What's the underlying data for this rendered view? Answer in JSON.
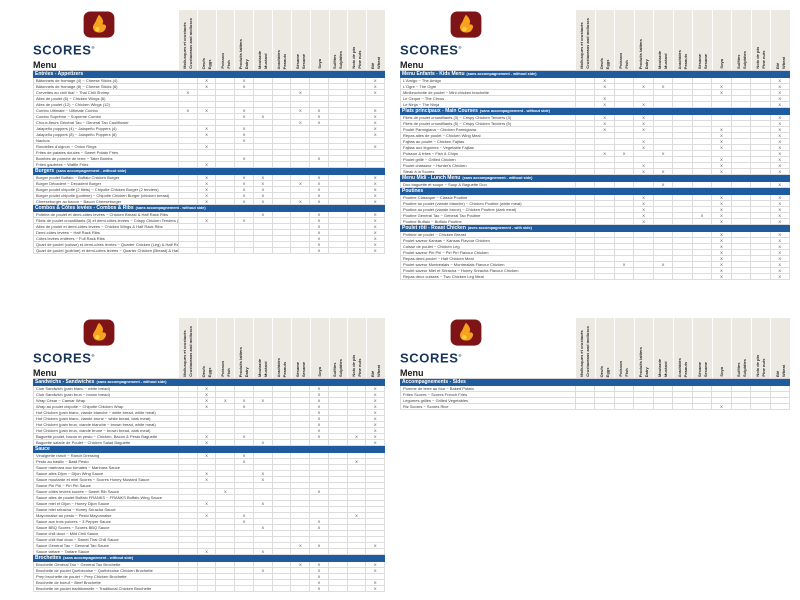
{
  "brand": {
    "name": "SCORES",
    "registered": "®",
    "menu_label": "Menu"
  },
  "mark": "X",
  "colors": {
    "section_bar_blue": "#1f5c9f",
    "logo_red": "#7e1416",
    "logo_navy": "#17365c",
    "flame_orange": "#f6a21f",
    "flame_yellow": "#fcd23b",
    "column_header_gray": "#ece9e3"
  },
  "allergens": [
    {
      "fr": "Mollusques et crustacés",
      "en": "Crustaceans and molluscs"
    },
    {
      "fr": "Oeufs",
      "en": "Eggs"
    },
    {
      "fr": "Poisson",
      "en": "Fish"
    },
    {
      "fr": "Produits laitiers",
      "en": "Dairy"
    },
    {
      "fr": "Moutarde",
      "en": "Mustard"
    },
    {
      "fr": "Arachides",
      "en": "Peanuts"
    },
    {
      "fr": "Sésame",
      "en": "Sesame"
    },
    {
      "fr": "Soya",
      "en": ""
    },
    {
      "fr": "Sulfites",
      "en": "Sulphites"
    },
    {
      "fr": "Noix de pin",
      "en": "Pine nuts"
    },
    {
      "fr": "Blé",
      "en": "Wheat"
    }
  ],
  "tables": [
    {
      "id": "q1",
      "sections": [
        {
          "title": "Entrées - Appetizers",
          "note": "",
          "rows": [
            {
              "name": "Bâtonnets de fromage (4) ~ Cheese Sticks (4)",
              "marks": [
                1,
                3,
                10
              ]
            },
            {
              "name": "Bâtonnets de fromage (8) ~ Cheese Sticks (8)",
              "marks": [
                1,
                3,
                10
              ]
            },
            {
              "name": "Crevettes au chili thaï ~ Thai Chili Shrimp",
              "marks": [
                0,
                6,
                10
              ]
            },
            {
              "name": "Ailes de poulet (6) ~ Chicken Wings (6)",
              "marks": []
            },
            {
              "name": "Ailes de poulet (12) ~ Chicken Wings (12)",
              "marks": []
            },
            {
              "name": "Combo Ultimate ~ Ultimate Combo",
              "marks": [
                0,
                1,
                3,
                6,
                7,
                10
              ]
            },
            {
              "name": "Combo Suprême ~ Supreme Combo",
              "marks": [
                3,
                4,
                7,
                10
              ]
            },
            {
              "name": "Choux-fleurs Général Tao ~ General Tao Cauliflower",
              "marks": [
                6,
                7,
                10
              ]
            },
            {
              "name": "Jalapeño poppers (4) ~ Jalapeño Poppers (4)",
              "marks": [
                1,
                3,
                10
              ]
            },
            {
              "name": "Jalapeño poppers (8) ~ Jalapeño Poppers (8)",
              "marks": [
                1,
                3,
                10
              ]
            },
            {
              "name": "Nachos",
              "marks": [
                3
              ]
            },
            {
              "name": "Rondelles d'oignon ~ Onion Rings",
              "marks": [
                1,
                10
              ]
            },
            {
              "name": "Frites de patates douces ~ Sweet Potato Fries",
              "marks": []
            },
            {
              "name": "Bombes de pomme de terre ~ Tater Bombs",
              "marks": [
                3,
                7
              ]
            },
            {
              "name": "Frites gaufrées ~ Waffle Fries",
              "marks": [
                1
              ]
            }
          ]
        },
        {
          "title": "Burgers",
          "note": "(sans accompagnement - without side)",
          "rows": [
            {
              "name": "Burger poulet Buffalo ~ Buffalo Chicken Burger",
              "marks": [
                1,
                3,
                4,
                7,
                10
              ]
            },
            {
              "name": "Burger Décadent ~ Decadent Burger",
              "marks": [
                1,
                3,
                4,
                6,
                7,
                10
              ]
            },
            {
              "name": "Burger poulet chipotle (2 filets) ~ Chipotle Chicken Burger (2 tenders)",
              "marks": [
                1,
                3,
                4,
                7,
                10
              ]
            },
            {
              "name": "Burger poulet chipotle (poitrine) ~ Chipotle Chicken Burger (chicken breast)",
              "marks": [
                1,
                3,
                4,
                7,
                10
              ]
            },
            {
              "name": "Cheeseburger au bacon ~ Bacon Cheeseburger",
              "marks": [
                1,
                3,
                4,
                6,
                7,
                10
              ]
            }
          ]
        },
        {
          "title": "Combos & Côtes levées - Combos & Ribs",
          "note": "(sans accompagnement - without side)",
          "rows": [
            {
              "name": "Poitrine de poulet et demi-côtes levées ~ Chicken Breast & Half Rack Ribs",
              "marks": [
                4,
                7,
                10
              ]
            },
            {
              "name": "Filets de poulet croustillants (3) et demi-côtes levées ~ Crispy Chicken Tenders (3) & Half Rack Ribs",
              "marks": [
                1,
                3,
                7,
                10
              ]
            },
            {
              "name": "Ailes de poulet et demi-côtes levées ~ Chicken Wings & Half Rack Ribs",
              "marks": [
                7,
                10
              ]
            },
            {
              "name": "Demi-côtes levées ~ Half Rack Ribs",
              "marks": [
                7,
                10
              ]
            },
            {
              "name": "Côtes levées entières ~ Full Rack Ribs",
              "marks": [
                7,
                10
              ]
            },
            {
              "name": "Quart de poulet (cuisse) et demi-côtes levées ~ Quarter Chicken (Leg) & Half Rack Ribs",
              "marks": [
                7,
                10
              ]
            },
            {
              "name": "Quart de poulet (poitrine) et demi-côtes levées ~ Quarter Chicken (Breast) & Half Rack Ribs",
              "marks": [
                7,
                10
              ]
            }
          ]
        }
      ]
    },
    {
      "id": "q2",
      "sections": [
        {
          "title": "Menu Enfants - Kids Menu",
          "note": "(sans accompagnement - without side)",
          "rows": [
            {
              "name": "L'Amigo ~ The Amigo",
              "marks": [
                1,
                10
              ]
            },
            {
              "name": "L'Ogre ~ The Ogre",
              "marks": [
                1,
                3,
                4,
                7,
                10
              ]
            },
            {
              "name": "Minibrochette de poulet ~ Mini chicken brochette",
              "marks": [
                7,
                10
              ]
            },
            {
              "name": "Le Cirque ~ The Circus",
              "marks": [
                1,
                10
              ]
            },
            {
              "name": "Le Ninja ~ The Ninja",
              "marks": [
                1,
                3,
                10
              ]
            }
          ]
        },
        {
          "title": "Plats principaux - Main Courses",
          "note": "(sans accompagnement - without side)",
          "rows": [
            {
              "name": "Filets de poulet croustillants (3) ~ Crispy Chicken Tenders (3)",
              "marks": [
                1,
                3,
                10
              ]
            },
            {
              "name": "Filets de poulet croustillants (5) ~ Crispy Chicken Tenders (5)",
              "marks": [
                1,
                3,
                10
              ]
            },
            {
              "name": "Poulet Parmigiana ~ Chicken Parmigiana",
              "marks": [
                1,
                3,
                7,
                10
              ]
            },
            {
              "name": "Repas ailes de poulet ~ Chicken Wing Meal",
              "marks": [
                7,
                10
              ]
            },
            {
              "name": "Fajitas au poulet ~ Chicken Fajitas",
              "marks": [
                3,
                7,
                10
              ]
            },
            {
              "name": "Fajitas aux légumes ~ Vegetable Fajitas",
              "marks": [
                3,
                7,
                10
              ]
            },
            {
              "name": "Poisson & frites ~ Fish & Chips",
              "marks": [
                1,
                2,
                4,
                10
              ]
            },
            {
              "name": "Poulet grillé ~ Grilled Chicken",
              "marks": [
                7,
                10
              ]
            },
            {
              "name": "Poulet chasseur ~ Hunter's Chicken",
              "marks": [
                3,
                7,
                10
              ]
            },
            {
              "name": "Steak à la Scores",
              "marks": [
                3,
                4,
                7,
                10
              ]
            }
          ]
        },
        {
          "title": "Menu Midi - Lunch Menu",
          "note": "(sans accompagnement - without side)",
          "rows": [
            {
              "name": "Duo baguette et soupe ~ Soup & Baguette Duo",
              "marks": [
                4,
                10
              ]
            }
          ]
        },
        {
          "title": "Poutines",
          "note": "",
          "rows": [
            {
              "name": "Poutine Classique ~ Classic Poutine",
              "marks": [
                3,
                7,
                10
              ]
            },
            {
              "name": "Poutine au poulet (viande blanche) ~ Chicken Poutine (white meat)",
              "marks": [
                3,
                7,
                10
              ]
            },
            {
              "name": "Poutine au poulet (viande brune) ~ Chicken Poutine (dark meat)",
              "marks": [
                3,
                7,
                10
              ]
            },
            {
              "name": "Poutine Général Tao ~ General Tao Poutine",
              "marks": [
                3,
                6,
                7,
                10
              ]
            },
            {
              "name": "Poutine Buffalo ~ Buffalo Poutine",
              "marks": [
                3,
                7,
                10
              ]
            }
          ]
        },
        {
          "title": "Poulet rôti - Roast Chicken",
          "note": "(avec accompagnement - with side)",
          "rows": [
            {
              "name": "Poitrine de poulet ~ Chicken Breast",
              "marks": [
                7,
                10
              ]
            },
            {
              "name": "Poulet saveur Kansas ~ Kansas Flavour Chicken",
              "marks": [
                7,
                10
              ]
            },
            {
              "name": "Cuisse de poulet ~ Chicken Leg",
              "marks": [
                7,
                10
              ]
            },
            {
              "name": "Poulet saveur Piri Piri ~ Piri Piri Flavour Chicken",
              "marks": [
                7,
                10
              ]
            },
            {
              "name": "Repas demi-poulet ~ Half Chicken Meal",
              "marks": [
                7,
                10
              ]
            },
            {
              "name": "Poulet saveur Montréalais ~ Montrealais Flavour Chicken",
              "marks": [
                2,
                4,
                7,
                10
              ]
            },
            {
              "name": "Poulet saveur Miel et Sriracha ~ Honey Sriracha Flavour Chicken",
              "marks": [
                7,
                10
              ]
            },
            {
              "name": "Repas deux cuisses ~ Two Chicken Leg Meal",
              "marks": [
                7,
                10
              ]
            }
          ]
        }
      ]
    },
    {
      "id": "q3",
      "sections": [
        {
          "title": "Sandwichs - Sandwiches",
          "note": "(sans accompagnement - without side)",
          "rows": [
            {
              "name": "Club Sandwich (pain blanc ~ white bread)",
              "marks": [
                1,
                7,
                10
              ]
            },
            {
              "name": "Club Sandwich (pain brun ~ brown bread)",
              "marks": [
                1,
                7,
                10
              ]
            },
            {
              "name": "Wrap César ~ Caesar Wrap",
              "marks": [
                1,
                2,
                3,
                4,
                7,
                10
              ]
            },
            {
              "name": "Wrap au poulet chipotle ~ Chipotle Chicken Wrap",
              "marks": [
                1,
                3,
                7,
                10
              ]
            },
            {
              "name": "Hot Chicken (pain blanc, viande blanche ~ white bread, white meat)",
              "marks": [
                7,
                10
              ]
            },
            {
              "name": "Hot Chicken (pain blanc, viande brune ~ white bread, dark meat)",
              "marks": [
                7,
                10
              ]
            },
            {
              "name": "Hot Chicken (pain brun, viande blanche ~ brown bread, white meat)",
              "marks": [
                7,
                10
              ]
            },
            {
              "name": "Hot Chicken (pain brun, viande brune ~ brown bread, dark meat)",
              "marks": [
                7,
                10
              ]
            },
            {
              "name": "Baguette poulet, bacon et pesto ~ Chicken, Bacon & Pesto Baguette",
              "marks": [
                1,
                3,
                7,
                9,
                10
              ]
            },
            {
              "name": "Baguette salade de Poulet ~ Chicken Salad Baguette",
              "marks": [
                1,
                4,
                10
              ]
            }
          ]
        },
        {
          "title": "Sauce",
          "note": "",
          "rows": [
            {
              "name": "Vinaigrette ranch ~ Ranch Dressing",
              "marks": [
                1,
                3
              ]
            },
            {
              "name": "Pesto au basilic ~ Basil Pesto",
              "marks": [
                3,
                9
              ]
            },
            {
              "name": "Sauce marinara aux tomates ~ Marinara Sauce",
              "marks": []
            },
            {
              "name": "Sauce ailes Dijon ~ Dijon Wing Sauce",
              "marks": [
                1,
                4
              ]
            },
            {
              "name": "Sauce moutarde et miel Scores ~ Scores Honey Mustard Sauce",
              "marks": [
                1,
                4
              ]
            },
            {
              "name": "Sauce Piri Piri ~ Piri Piri Sauce",
              "marks": []
            },
            {
              "name": "Sauce côtes levées sucrée ~ Sweet Rib Sauce",
              "marks": [
                2,
                7
              ]
            },
            {
              "name": "Sauce ailes de poulet Buffalo FRANKS ~ FRANKS Buffalo Wing Sauce",
              "marks": []
            },
            {
              "name": "Sauce miel et Dijon ~ Honey Dijon Sauce",
              "marks": [
                1,
                4
              ]
            },
            {
              "name": "Sauce miel sriracha ~ Honey Sriracha Sauce",
              "marks": []
            },
            {
              "name": "Mayonnaise au pesto ~ Pesto Mayonnaise",
              "marks": [
                1,
                3,
                9
              ]
            },
            {
              "name": "Sauce aux trois poivres ~ 3 Pepper Sauce",
              "marks": [
                3,
                7
              ]
            },
            {
              "name": "Sauce BBQ Scores ~ Scores BBQ Sauce",
              "marks": [
                4,
                7
              ]
            },
            {
              "name": "Sauce chili doux ~ Mild Chili Sauce",
              "marks": []
            },
            {
              "name": "Sauce chili thaï doux ~ Sweet Thai Chili Sauce",
              "marks": []
            },
            {
              "name": "Sauce Général Tao ~ General Tao Sauce",
              "marks": [
                6,
                7,
                10
              ]
            },
            {
              "name": "Sauce tartare ~ Tartare Sauce",
              "marks": [
                1,
                4
              ]
            }
          ]
        },
        {
          "title": "Brochettes",
          "note": "(sans accompagnement - without side)",
          "rows": [
            {
              "name": "Brochette Général Tao ~ General Tao Brochette",
              "marks": [
                6,
                7,
                10
              ]
            },
            {
              "name": "Brochette de poulet Québécoise ~ Québécoise Chicken Brochette",
              "marks": [
                4,
                7,
                10
              ]
            },
            {
              "name": "Prep brochette de poulet ~ Prep Chicken Brochette",
              "marks": [
                7
              ]
            },
            {
              "name": "Brochette de boeuf ~ Beef Brochette",
              "marks": [
                7,
                10
              ]
            },
            {
              "name": "Brochette de poulet traditionnelle ~ Traditional Chicken Brochette",
              "marks": [
                7,
                10
              ]
            }
          ]
        }
      ]
    },
    {
      "id": "q4",
      "sections": [
        {
          "title": "Accompagnements - Sides",
          "note": "",
          "rows": [
            {
              "name": "Pomme de terre au four ~ Baked Potato",
              "marks": []
            },
            {
              "name": "Frites Scores ~ Scores French Fries",
              "marks": []
            },
            {
              "name": "Légumes grillés ~ Grilled Vegetables",
              "marks": []
            },
            {
              "name": "Riz Scores ~ Scores Rice",
              "marks": [
                7
              ]
            }
          ]
        }
      ]
    }
  ]
}
